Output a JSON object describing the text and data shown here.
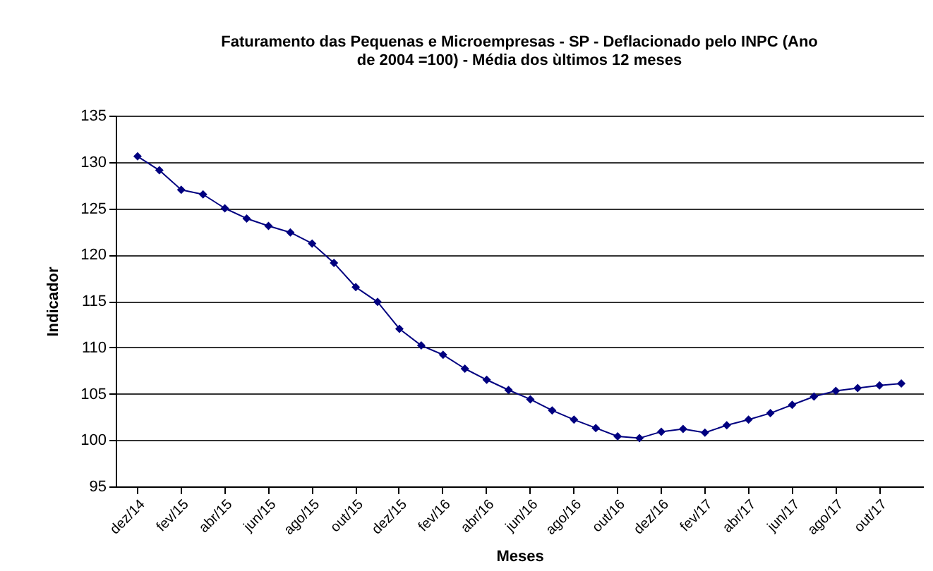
{
  "chart_data": {
    "type": "line",
    "title": "Faturamento das Pequenas e Microempresas - SP - Deflacionado pelo INPC (Ano de 2004 =100) - Média dos ùltimos 12 meses",
    "xlabel": "Meses",
    "ylabel": "Indicador",
    "categories": [
      "dez/14",
      null,
      "fev/15",
      null,
      "abr/15",
      null,
      "jun/15",
      null,
      "ago/15",
      null,
      "out/15",
      null,
      "dez/15",
      null,
      "fev/16",
      null,
      "abr/16",
      null,
      "jun/16",
      null,
      "ago/16",
      null,
      "out/16",
      null,
      "dez/16",
      null,
      "fev/17",
      null,
      "abr/17",
      null,
      "jun/17",
      null,
      "ago/17",
      null,
      "out/17",
      null
    ],
    "series": [
      {
        "color": "#000080",
        "values": [
          130.6,
          129.1,
          127,
          126.5,
          125,
          123.9,
          123.1,
          122.4,
          121.2,
          119.1,
          116.5,
          114.9,
          112,
          110.2,
          109.2,
          107.7,
          106.5,
          105.4,
          104.4,
          103.2,
          102.2,
          101.3,
          100.4,
          100.2,
          100.9,
          101.2,
          100.8,
          101.6,
          102.2,
          102.9,
          103.8,
          104.7,
          105.3,
          105.6,
          105.9,
          106.1
        ]
      }
    ],
    "ylim": [
      95,
      135
    ],
    "yticks": [
      95,
      100,
      105,
      110,
      115,
      120,
      125,
      130,
      135
    ],
    "grid": "y",
    "marker": "diamond"
  }
}
